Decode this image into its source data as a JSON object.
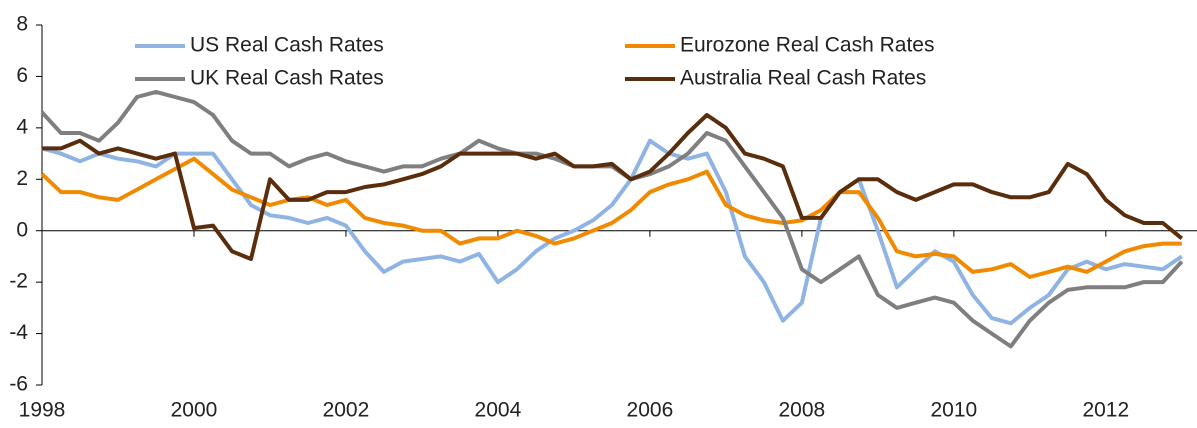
{
  "chart_data": {
    "type": "line",
    "x": [
      1998,
      1998.25,
      1998.5,
      1998.75,
      1999,
      1999.25,
      1999.5,
      1999.75,
      2000,
      2000.25,
      2000.5,
      2000.75,
      2001,
      2001.25,
      2001.5,
      2001.75,
      2002,
      2002.25,
      2002.5,
      2002.75,
      2003,
      2003.25,
      2003.5,
      2003.75,
      2004,
      2004.25,
      2004.5,
      2004.75,
      2005,
      2005.25,
      2005.5,
      2005.75,
      2006,
      2006.25,
      2006.5,
      2006.75,
      2007,
      2007.25,
      2007.5,
      2007.75,
      2008,
      2008.25,
      2008.5,
      2008.75,
      2009,
      2009.25,
      2009.5,
      2009.75,
      2010,
      2010.25,
      2010.5,
      2010.75,
      2011,
      2011.25,
      2011.5,
      2011.75,
      2012,
      2012.25,
      2012.5,
      2012.75,
      2013
    ],
    "series": [
      {
        "name": "US Real Cash Rates",
        "color": "#8fb4e3",
        "values": [
          3.2,
          3.0,
          2.7,
          3.0,
          2.8,
          2.7,
          2.5,
          3.0,
          3.0,
          3.0,
          2.0,
          1.0,
          0.6,
          0.5,
          0.3,
          0.5,
          0.2,
          -0.8,
          -1.6,
          -1.2,
          -1.1,
          -1.0,
          -1.2,
          -0.9,
          -2.0,
          -1.5,
          -0.8,
          -0.3,
          0.0,
          0.4,
          1.0,
          2.0,
          3.5,
          3.0,
          2.8,
          3.0,
          1.5,
          -1.0,
          -2.0,
          -3.5,
          -2.8,
          0.5,
          1.5,
          2.0,
          0.0,
          -2.2,
          -1.5,
          -0.8,
          -1.2,
          -2.5,
          -3.4,
          -3.6,
          -3.0,
          -2.5,
          -1.5,
          -1.2,
          -1.5,
          -1.3,
          -1.4,
          -1.5,
          -1.0
        ]
      },
      {
        "name": "Eurozone Real Cash Rates",
        "color": "#f08a00",
        "values": [
          2.2,
          1.5,
          1.5,
          1.3,
          1.2,
          1.6,
          2.0,
          2.4,
          2.8,
          2.2,
          1.6,
          1.3,
          1.0,
          1.2,
          1.3,
          1.0,
          1.2,
          0.5,
          0.3,
          0.2,
          0.0,
          0.0,
          -0.5,
          -0.3,
          -0.3,
          0.0,
          -0.2,
          -0.5,
          -0.3,
          0.0,
          0.3,
          0.8,
          1.5,
          1.8,
          2.0,
          2.3,
          1.0,
          0.6,
          0.4,
          0.3,
          0.4,
          0.8,
          1.5,
          1.5,
          0.5,
          -0.8,
          -1.0,
          -0.9,
          -1.0,
          -1.6,
          -1.5,
          -1.3,
          -1.8,
          -1.6,
          -1.4,
          -1.6,
          -1.2,
          -0.8,
          -0.6,
          -0.5,
          -0.5
        ]
      },
      {
        "name": "UK Real Cash Rates",
        "color": "#7f7f7f",
        "values": [
          4.6,
          3.8,
          3.8,
          3.5,
          4.2,
          5.2,
          5.4,
          5.2,
          5.0,
          4.5,
          3.5,
          3.0,
          3.0,
          2.5,
          2.8,
          3.0,
          2.7,
          2.5,
          2.3,
          2.5,
          2.5,
          2.8,
          3.0,
          3.5,
          3.2,
          3.0,
          3.0,
          2.8,
          2.5,
          2.5,
          2.5,
          2.0,
          2.2,
          2.5,
          3.0,
          3.8,
          3.5,
          2.5,
          1.5,
          0.5,
          -1.5,
          -2.0,
          -1.5,
          -1.0,
          -2.5,
          -3.0,
          -2.8,
          -2.6,
          -2.8,
          -3.5,
          -4.0,
          -4.5,
          -3.5,
          -2.8,
          -2.3,
          -2.2,
          -2.2,
          -2.2,
          -2.0,
          -2.0,
          -1.2
        ]
      },
      {
        "name": "Australia Real Cash Rates",
        "color": "#5a2d0c",
        "values": [
          3.2,
          3.2,
          3.5,
          3.0,
          3.2,
          3.0,
          2.8,
          3.0,
          0.1,
          0.2,
          -0.8,
          -1.1,
          2.0,
          1.2,
          1.2,
          1.5,
          1.5,
          1.7,
          1.8,
          2.0,
          2.2,
          2.5,
          3.0,
          3.0,
          3.0,
          3.0,
          2.8,
          3.0,
          2.5,
          2.5,
          2.6,
          2.0,
          2.3,
          3.0,
          3.8,
          4.5,
          4.0,
          3.0,
          2.8,
          2.5,
          0.5,
          0.5,
          1.5,
          2.0,
          2.0,
          1.5,
          1.2,
          1.5,
          1.8,
          1.8,
          1.5,
          1.3,
          1.3,
          1.5,
          2.6,
          2.2,
          1.2,
          0.6,
          0.3,
          0.3,
          -0.3
        ]
      }
    ],
    "xlim": [
      1998,
      2013.2
    ],
    "xticks": [
      1998,
      2000,
      2002,
      2004,
      2006,
      2008,
      2010,
      2012
    ],
    "ylim": [
      -6,
      8
    ],
    "yticks": [
      8,
      6,
      4,
      2,
      0,
      -2,
      -4,
      -6
    ],
    "legend": "top"
  }
}
